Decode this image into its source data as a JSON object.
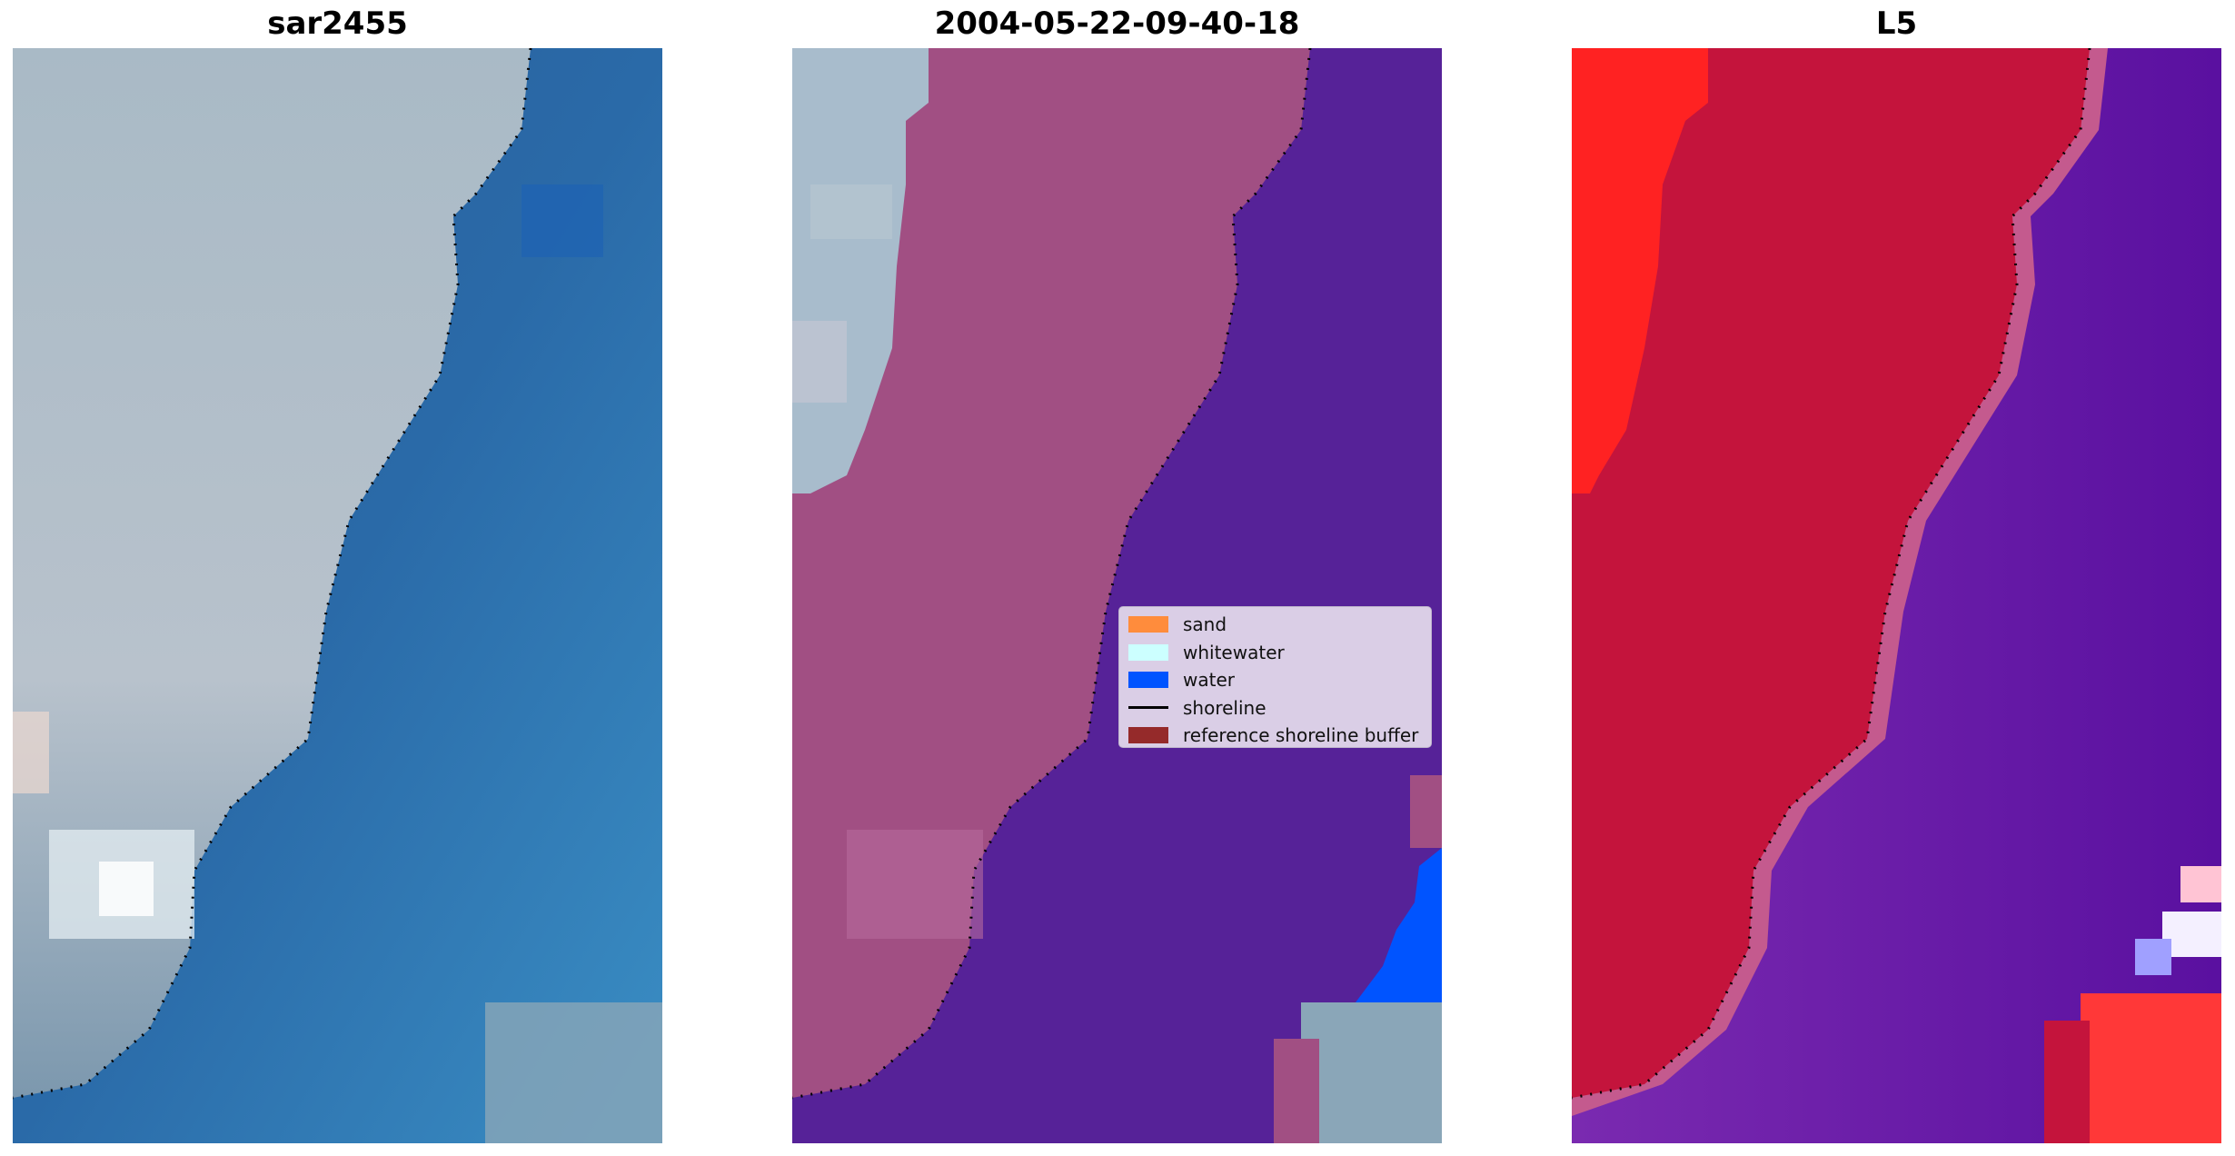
{
  "panels": [
    {
      "title": "sar2455"
    },
    {
      "title": "2004-05-22-09-40-18"
    },
    {
      "title": "L5"
    }
  ],
  "legend": {
    "items": [
      {
        "label": "sand",
        "color": "#ff8c3c",
        "kind": "patch"
      },
      {
        "label": "whitewater",
        "color": "#ccffff",
        "kind": "patch"
      },
      {
        "label": "water",
        "color": "#0054ff",
        "kind": "patch"
      },
      {
        "label": "shoreline",
        "color": "#000000",
        "kind": "line"
      },
      {
        "label": "reference shoreline buffer",
        "color": "#952a2a",
        "kind": "patch"
      }
    ]
  },
  "colors": {
    "land_rgb": "#b4c0cc",
    "water_rgb": "#2a5a96",
    "classified_sand_overlay": "#a0507a",
    "classified_water": "#562298",
    "mndwi_land": "#c4123c",
    "mndwi_water": "#6a1aa6",
    "mndwi_bright": "#ff2020"
  }
}
